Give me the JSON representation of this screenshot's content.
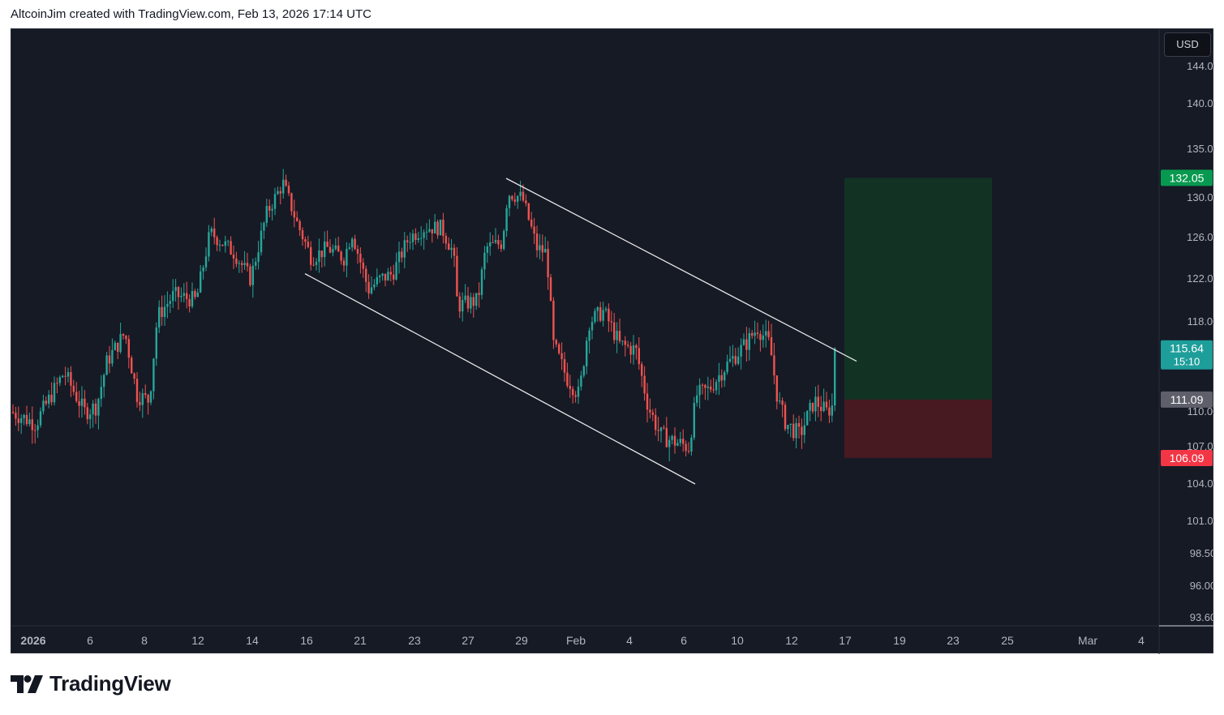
{
  "header": {
    "caption": "AltcoinJim created with TradingView.com, Feb 13, 2026 17:14 UTC"
  },
  "footer": {
    "logo_text": "TradingView"
  },
  "colors": {
    "background": "#161a25",
    "up": "#26a69a",
    "down": "#ef5350",
    "trendline": "#e8e8e8",
    "target_zone": "#123524",
    "stop_zone": "#4a1a22",
    "target_badge": "#089950",
    "stop_badge": "#f23645",
    "current_badge": "#1e9e9a",
    "entry_badge": "#5d606b",
    "axis_text": "#b2b5be"
  },
  "chart_data": {
    "type": "candlestick",
    "currency": "USD",
    "y_axis": {
      "ticks": [
        93.6,
        96.0,
        98.5,
        101.0,
        104.0,
        107.0,
        110.0,
        118.0,
        122.0,
        126.0,
        130.0,
        135.0,
        140.0,
        144.0
      ],
      "tick_labels": [
        "93.60",
        "96.00",
        "98.50",
        "101.00",
        "104.00",
        "107.00",
        "110.00",
        "118.00",
        "122.00",
        "126.00",
        "130.00",
        "135.00",
        "140.00",
        "144.00"
      ]
    },
    "x_axis": {
      "labels": [
        "2026",
        "6",
        "8",
        "12",
        "14",
        "16",
        "21",
        "23",
        "27",
        "29",
        "Feb",
        "4",
        "6",
        "10",
        "12",
        "17",
        "19",
        "23",
        "25",
        "Mar",
        "4"
      ]
    },
    "price_path": [
      [
        0,
        110.0
      ],
      [
        30,
        109.0
      ],
      [
        65,
        113.5
      ],
      [
        90,
        110.0
      ],
      [
        105,
        110.5
      ],
      [
        118,
        114.5
      ],
      [
        140,
        117.0
      ],
      [
        155,
        111.5
      ],
      [
        170,
        111.0
      ],
      [
        180,
        118.5
      ],
      [
        200,
        120.5
      ],
      [
        228,
        120.0
      ],
      [
        245,
        126.5
      ],
      [
        275,
        124.5
      ],
      [
        295,
        122.0
      ],
      [
        315,
        128.5
      ],
      [
        335,
        131.5
      ],
      [
        352,
        127.5
      ],
      [
        370,
        124.0
      ],
      [
        390,
        125.0
      ],
      [
        410,
        124.0
      ],
      [
        420,
        126.5
      ],
      [
        440,
        121.0
      ],
      [
        455,
        122.0
      ],
      [
        470,
        122.5
      ],
      [
        490,
        126.0
      ],
      [
        510,
        127.0
      ],
      [
        530,
        127.0
      ],
      [
        545,
        124.5
      ],
      [
        550,
        119.5
      ],
      [
        575,
        120.0
      ],
      [
        585,
        125.0
      ],
      [
        605,
        125.5
      ],
      [
        612,
        130.5
      ],
      [
        630,
        130.0
      ],
      [
        648,
        125.0
      ],
      [
        660,
        124.5
      ],
      [
        668,
        116.0
      ],
      [
        685,
        113.0
      ],
      [
        700,
        111.5
      ],
      [
        712,
        118.0
      ],
      [
        730,
        119.0
      ],
      [
        750,
        116.0
      ],
      [
        770,
        115.5
      ],
      [
        785,
        110.5
      ],
      [
        800,
        108.0
      ],
      [
        815,
        107.5
      ],
      [
        835,
        107.0
      ],
      [
        845,
        111.5
      ],
      [
        860,
        112.0
      ],
      [
        880,
        114.0
      ],
      [
        905,
        116.0
      ],
      [
        920,
        117.5
      ],
      [
        935,
        116.0
      ],
      [
        945,
        111.0
      ],
      [
        955,
        109.0
      ],
      [
        972,
        108.0
      ],
      [
        990,
        111.0
      ],
      [
        1005,
        110.0
      ],
      [
        1012,
        110.5
      ],
      [
        1018,
        115.6
      ]
    ],
    "trendlines": [
      {
        "name": "channel-upper",
        "from": {
          "day": 610,
          "price": 132.0
        },
        "to": {
          "day": 1042,
          "price": 114.5
        }
      },
      {
        "name": "channel-lower",
        "from": {
          "day": 362,
          "price": 122.5
        },
        "to": {
          "day": 843,
          "price": 104.0
        }
      }
    ],
    "position": {
      "type": "long",
      "start_day": 1027,
      "end_day": 1209,
      "target": 132.05,
      "entry": 111.09,
      "stop": 106.09
    },
    "price_badges": {
      "target": "132.05",
      "current": "115.64",
      "countdown": "15:10",
      "entry": "111.09",
      "stop": "106.09"
    }
  }
}
